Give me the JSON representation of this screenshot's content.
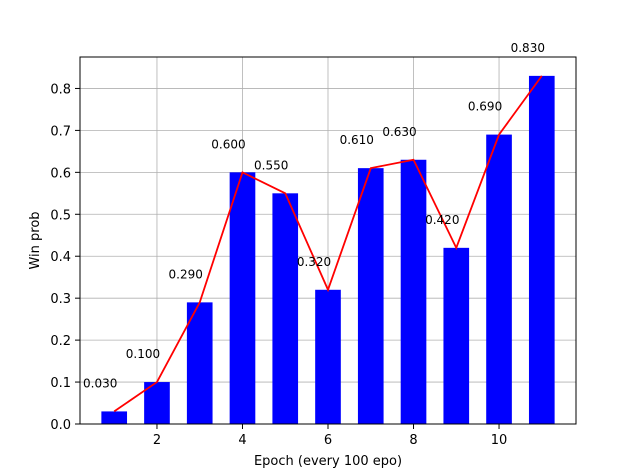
{
  "chart_data": {
    "type": "bar",
    "x": [
      1,
      2,
      3,
      4,
      5,
      6,
      7,
      8,
      9,
      10,
      11
    ],
    "values": [
      0.03,
      0.1,
      0.29,
      0.6,
      0.55,
      0.32,
      0.61,
      0.63,
      0.42,
      0.69,
      0.83
    ],
    "data_labels": [
      "0.030",
      "0.100",
      "0.290",
      "0.600",
      "0.550",
      "0.320",
      "0.610",
      "0.630",
      "0.420",
      "0.690",
      "0.830"
    ],
    "overlay_line": {
      "values": [
        0.03,
        0.1,
        0.29,
        0.6,
        0.55,
        0.32,
        0.61,
        0.63,
        0.42,
        0.69,
        0.83
      ],
      "color": "#ff0000"
    },
    "bar_color": "#0000ff",
    "xlabel": "Epoch (every 100 epo)",
    "ylabel": "Win prob",
    "xlim": [
      0.2,
      11.8
    ],
    "ylim": [
      0,
      0.875
    ],
    "xticks": [
      2,
      4,
      6,
      8,
      10
    ],
    "xtick_labels": [
      "2",
      "4",
      "6",
      "8",
      "10"
    ],
    "yticks": [
      0.0,
      0.1,
      0.2,
      0.3,
      0.4,
      0.5,
      0.6,
      0.7,
      0.8
    ],
    "ytick_labels": [
      "0.0",
      "0.1",
      "0.2",
      "0.3",
      "0.4",
      "0.5",
      "0.6",
      "0.7",
      "0.8"
    ],
    "grid": true,
    "legend": "none"
  }
}
